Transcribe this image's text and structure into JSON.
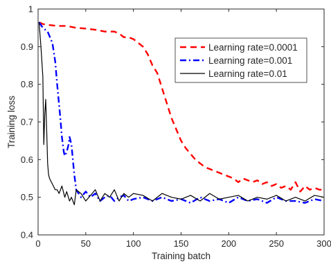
{
  "chart_data": {
    "type": "line",
    "title": "",
    "xlabel": "Training batch",
    "ylabel": "Training loss",
    "xlim": [
      0,
      300
    ],
    "ylim": [
      0.4,
      1.0
    ],
    "xticks": [
      0,
      50,
      100,
      150,
      200,
      250,
      300
    ],
    "yticks": [
      0.4,
      0.5,
      0.6,
      0.7,
      0.8,
      0.9,
      1.0
    ],
    "xtick_labels": [
      "0",
      "50",
      "100",
      "150",
      "200",
      "250",
      "300"
    ],
    "ytick_labels": [
      "0.4",
      "0.5",
      "0.6",
      "0.7",
      "0.8",
      "0.9",
      "1"
    ],
    "grid": false,
    "legend_position": "top-right",
    "series": [
      {
        "name": "Learning rate=0.0001",
        "color": "#ff0000",
        "style": "dashed",
        "x": [
          1,
          5,
          10,
          20,
          30,
          40,
          50,
          60,
          70,
          80,
          85,
          90,
          95,
          100,
          105,
          110,
          115,
          120,
          125,
          130,
          135,
          140,
          145,
          150,
          155,
          160,
          165,
          170,
          175,
          180,
          185,
          190,
          195,
          200,
          205,
          210,
          215,
          220,
          225,
          230,
          235,
          240,
          245,
          250,
          255,
          260,
          265,
          270,
          275,
          280,
          285,
          290,
          295,
          300
        ],
        "y": [
          0.965,
          0.96,
          0.958,
          0.955,
          0.955,
          0.95,
          0.948,
          0.945,
          0.94,
          0.94,
          0.935,
          0.925,
          0.925,
          0.92,
          0.91,
          0.9,
          0.88,
          0.85,
          0.83,
          0.79,
          0.75,
          0.71,
          0.68,
          0.65,
          0.63,
          0.615,
          0.6,
          0.59,
          0.58,
          0.575,
          0.57,
          0.565,
          0.56,
          0.555,
          0.55,
          0.54,
          0.55,
          0.545,
          0.54,
          0.545,
          0.535,
          0.54,
          0.53,
          0.535,
          0.525,
          0.53,
          0.52,
          0.54,
          0.515,
          0.53,
          0.52,
          0.525,
          0.52,
          0.52
        ]
      },
      {
        "name": "Learning rate=0.001",
        "color": "#0000ff",
        "style": "dashdot",
        "x": [
          1,
          5,
          10,
          15,
          18,
          20,
          23,
          25,
          27,
          28,
          30,
          32,
          33,
          35,
          38,
          40,
          45,
          50,
          55,
          60,
          65,
          70,
          75,
          80,
          85,
          90,
          95,
          100,
          110,
          120,
          130,
          140,
          150,
          160,
          170,
          180,
          190,
          200,
          210,
          220,
          230,
          240,
          250,
          260,
          270,
          280,
          290,
          300
        ],
        "y": [
          0.965,
          0.95,
          0.94,
          0.91,
          0.86,
          0.8,
          0.72,
          0.66,
          0.62,
          0.61,
          0.62,
          0.64,
          0.66,
          0.64,
          0.56,
          0.52,
          0.5,
          0.515,
          0.5,
          0.51,
          0.49,
          0.5,
          0.505,
          0.49,
          0.5,
          0.505,
          0.49,
          0.495,
          0.5,
          0.49,
          0.5,
          0.49,
          0.495,
          0.485,
          0.5,
          0.49,
          0.495,
          0.485,
          0.5,
          0.49,
          0.495,
          0.485,
          0.5,
          0.49,
          0.49,
          0.485,
          0.495,
          0.49
        ]
      },
      {
        "name": "Learning rate=0.01",
        "color": "#000000",
        "style": "solid",
        "x": [
          1,
          3,
          5,
          6,
          7,
          8,
          9,
          10,
          11,
          12,
          14,
          16,
          18,
          20,
          22,
          25,
          28,
          30,
          33,
          35,
          38,
          40,
          45,
          50,
          55,
          60,
          65,
          70,
          75,
          80,
          85,
          90,
          95,
          100,
          110,
          120,
          130,
          140,
          150,
          160,
          170,
          180,
          190,
          200,
          210,
          220,
          230,
          240,
          250,
          260,
          270,
          280,
          290,
          300
        ],
        "y": [
          0.965,
          0.9,
          0.82,
          0.64,
          0.72,
          0.76,
          0.68,
          0.59,
          0.56,
          0.55,
          0.54,
          0.53,
          0.52,
          0.52,
          0.51,
          0.53,
          0.5,
          0.515,
          0.49,
          0.5,
          0.48,
          0.52,
          0.51,
          0.49,
          0.505,
          0.52,
          0.49,
          0.51,
          0.5,
          0.52,
          0.49,
          0.51,
          0.5,
          0.51,
          0.505,
          0.49,
          0.51,
          0.5,
          0.495,
          0.505,
          0.49,
          0.51,
          0.495,
          0.5,
          0.505,
          0.49,
          0.5,
          0.495,
          0.505,
          0.49,
          0.5,
          0.49,
          0.505,
          0.5
        ]
      }
    ]
  }
}
